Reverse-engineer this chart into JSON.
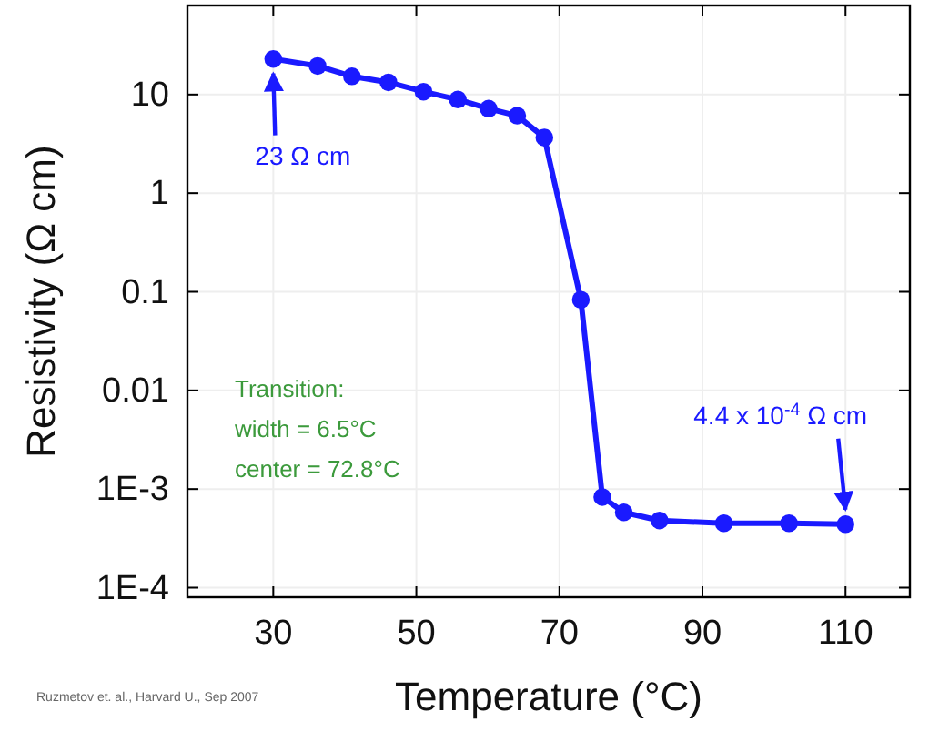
{
  "chart_data": {
    "type": "line",
    "xlabel": "Temperature (°C)",
    "ylabel": "Resistivity (Ω cm)",
    "x": [
      30,
      36.2,
      41,
      46.1,
      51,
      55.8,
      60.1,
      64.1,
      67.9,
      73,
      76,
      79,
      84,
      93,
      102.1,
      110
    ],
    "series": [
      {
        "color": "#1a1aff",
        "values": [
          23,
          19.5,
          15.3,
          13.3,
          10.7,
          8.9,
          7.2,
          6.1,
          3.66,
          0.083,
          0.00083,
          0.00058,
          0.00048,
          0.00045,
          0.00045,
          0.00044
        ]
      }
    ],
    "xlim": [
      18,
      119
    ],
    "xticks": [
      30,
      50,
      70,
      90,
      110
    ],
    "ylim": [
      8e-05,
      80
    ],
    "yticks": [
      10,
      1,
      0.1,
      0.01,
      {
        "value": 0.001,
        "label": "1E-3"
      },
      {
        "value": 0.0001,
        "label": "1E-4"
      }
    ],
    "log": "y",
    "grid": true,
    "marker": "circle",
    "line_style": "solid",
    "annotations": [
      {
        "text": "23 Ω cm",
        "x": 30,
        "y": 23
      },
      {
        "text": "4.4 x 10$^{-4}$ Ω cm",
        "x": 110,
        "y": 0.00044
      },
      "Transition:",
      "width = 6.5°C",
      "center = 72.8°C",
      "Ruzmetov et. al., Harvard U., Sep 2007"
    ]
  }
}
